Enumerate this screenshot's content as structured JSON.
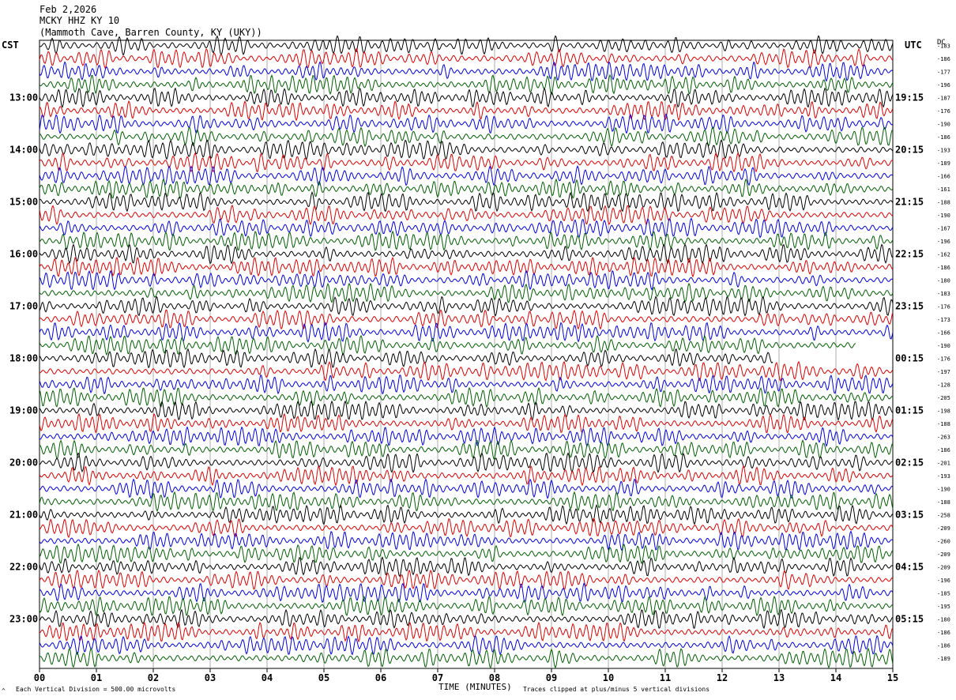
{
  "header": {
    "date": "Feb 2,2026",
    "station": "MCKY HHZ KY 10",
    "location": "(Mammoth Cave, Barren County, KY (UKY))"
  },
  "left_zone": "CST",
  "right_zone": "UTC",
  "dc_label": "DC",
  "footer": {
    "scale_note": "Each Vertical Division =  500.00 microvolts",
    "clip_note": "Traces clipped at plus/minus 5 vertical divisions",
    "corner_mark": "^"
  },
  "colors": {
    "trace_cycle": [
      "#000000",
      "#e00000",
      "#0000e0",
      "#006000"
    ],
    "grid": "#999999",
    "frame": "#000000"
  },
  "chart_data": {
    "type": "line",
    "xlabel": "TIME (MINUTES)",
    "xlim": [
      0,
      15
    ],
    "x_ticks": [
      "00",
      "01",
      "02",
      "03",
      "04",
      "05",
      "06",
      "07",
      "08",
      "09",
      "10",
      "11",
      "12",
      "13",
      "14",
      "15"
    ],
    "rows_per_hour": 4,
    "row_count": 48,
    "left_hour_labels": [
      {
        "row": 4,
        "label": "13:00"
      },
      {
        "row": 8,
        "label": "14:00"
      },
      {
        "row": 12,
        "label": "15:00"
      },
      {
        "row": 16,
        "label": "16:00"
      },
      {
        "row": 20,
        "label": "17:00"
      },
      {
        "row": 24,
        "label": "18:00"
      },
      {
        "row": 28,
        "label": "19:00"
      },
      {
        "row": 32,
        "label": "20:00"
      },
      {
        "row": 36,
        "label": "21:00"
      },
      {
        "row": 40,
        "label": "22:00"
      },
      {
        "row": 44,
        "label": "23:00"
      }
    ],
    "right_hour_labels": [
      {
        "row": 4,
        "label": "19:15"
      },
      {
        "row": 8,
        "label": "20:15"
      },
      {
        "row": 12,
        "label": "21:15"
      },
      {
        "row": 16,
        "label": "22:15"
      },
      {
        "row": 20,
        "label": "23:15"
      },
      {
        "row": 24,
        "label": "00:15"
      },
      {
        "row": 28,
        "label": "01:15"
      },
      {
        "row": 32,
        "label": "02:15"
      },
      {
        "row": 36,
        "label": "03:15"
      },
      {
        "row": 40,
        "label": "04:15"
      },
      {
        "row": 44,
        "label": "05:15"
      }
    ],
    "dc_offsets": [
      "-183",
      "-186",
      "-177",
      "-196",
      "-187",
      "-176",
      "-190",
      "-186",
      "-193",
      "-189",
      "-166",
      "-161",
      "-188",
      "-190",
      "-167",
      "-196",
      "-162",
      "-186",
      "-180",
      "-183",
      "-176",
      "-173",
      "-166",
      "-190",
      "-176",
      "-197",
      "-128",
      "-205",
      "-198",
      "-188",
      "-263",
      "-186",
      "-201",
      "-193",
      "-190",
      "-188",
      "-258",
      "-209",
      "-260",
      "-209",
      "-209",
      "-196",
      "-185",
      "-195",
      "-180",
      "-186",
      "-186",
      "-189"
    ],
    "amplitude_divisions": 0.45,
    "clip_divisions": 5,
    "last_row_data_end_minutes": [
      {
        "row": 23,
        "end": 14.35
      },
      {
        "row": 24,
        "end": 12.9
      }
    ]
  }
}
